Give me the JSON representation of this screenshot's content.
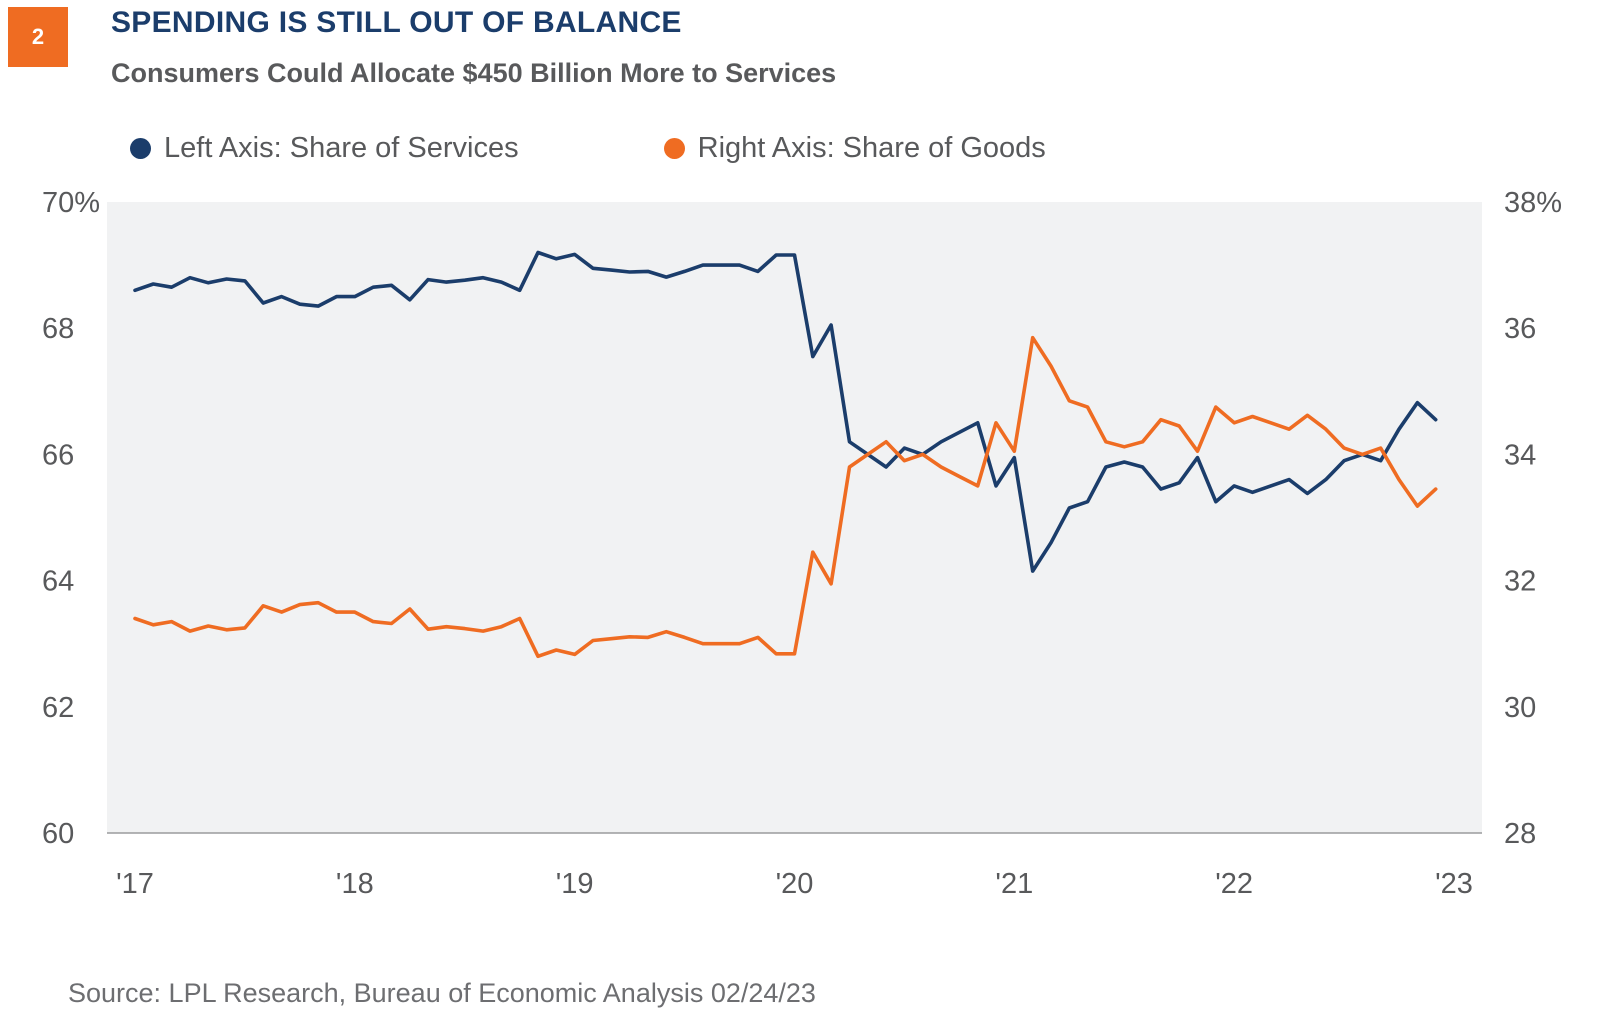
{
  "header": {
    "badge": "2",
    "title": "SPENDING IS STILL OUT OF BALANCE",
    "subtitle": "Consumers Could Allocate  $450 Billion More to Services"
  },
  "legend": [
    {
      "label": "Left Axis: Share of Services",
      "color": "#1b3d6b"
    },
    {
      "label": "Right Axis: Share of Goods",
      "color": "#ef6c22"
    }
  ],
  "source": "Source: LPL Research, Bureau of Economic Analysis  02/24/23",
  "chart_data": {
    "type": "line",
    "title": "SPENDING IS STILL OUT OF BALANCE",
    "subtitle": "Consumers Could Allocate  $450 Billion More to Services",
    "x_start": "2017-01",
    "x_end": "2023-01",
    "x_ticks": [
      "'17",
      "'18",
      "'19",
      "'20",
      "'21",
      "'22",
      "'23"
    ],
    "y_left": {
      "range": [
        60,
        70
      ],
      "ticks": [
        "60",
        "62",
        "64",
        "66",
        "68",
        "70%"
      ]
    },
    "y_right": {
      "range": [
        28,
        38
      ],
      "ticks": [
        "28",
        "30",
        "32",
        "34",
        "36",
        "38%"
      ]
    },
    "grid": false,
    "legend_position": "top-left",
    "series": [
      {
        "name": "Left Axis: Share of Services",
        "axis": "left",
        "color": "#1b3d6b",
        "values": [
          68.6,
          68.7,
          68.65,
          68.8,
          68.72,
          68.78,
          68.75,
          68.4,
          68.5,
          68.38,
          68.35,
          68.5,
          68.5,
          68.65,
          68.68,
          68.45,
          68.77,
          68.73,
          68.76,
          68.8,
          68.73,
          68.6,
          69.2,
          69.1,
          69.17,
          68.95,
          68.92,
          68.89,
          68.9,
          68.81,
          68.9,
          69.0,
          69.0,
          69.0,
          68.9,
          69.16,
          69.16,
          67.55,
          68.05,
          66.2,
          66.0,
          65.8,
          66.1,
          66.0,
          66.2,
          66.35,
          66.5,
          65.5,
          65.95,
          64.15,
          64.6,
          65.15,
          65.25,
          65.8,
          65.88,
          65.8,
          65.45,
          65.55,
          65.95,
          65.25,
          65.5,
          65.4,
          65.5,
          65.6,
          65.38,
          65.6,
          65.9,
          66.0,
          65.9,
          66.4,
          66.82,
          66.55
        ]
      },
      {
        "name": "Right Axis: Share of Goods",
        "axis": "right",
        "color": "#ef6c22",
        "values": [
          31.4,
          31.3,
          31.35,
          31.2,
          31.28,
          31.22,
          31.25,
          31.6,
          31.5,
          31.62,
          31.65,
          31.5,
          31.5,
          31.35,
          31.32,
          31.55,
          31.23,
          31.27,
          31.24,
          31.2,
          31.27,
          31.4,
          30.8,
          30.9,
          30.83,
          31.05,
          31.08,
          31.11,
          31.1,
          31.19,
          31.1,
          31.0,
          31.0,
          31.0,
          31.1,
          30.84,
          30.84,
          32.45,
          31.95,
          33.8,
          34.0,
          34.2,
          33.9,
          34.0,
          33.8,
          33.65,
          33.5,
          34.5,
          34.05,
          35.85,
          35.4,
          34.85,
          34.75,
          34.2,
          34.12,
          34.2,
          34.55,
          34.45,
          34.05,
          34.75,
          34.5,
          34.6,
          34.5,
          34.4,
          34.62,
          34.4,
          34.1,
          34.0,
          34.1,
          33.6,
          33.18,
          33.45
        ]
      }
    ]
  }
}
